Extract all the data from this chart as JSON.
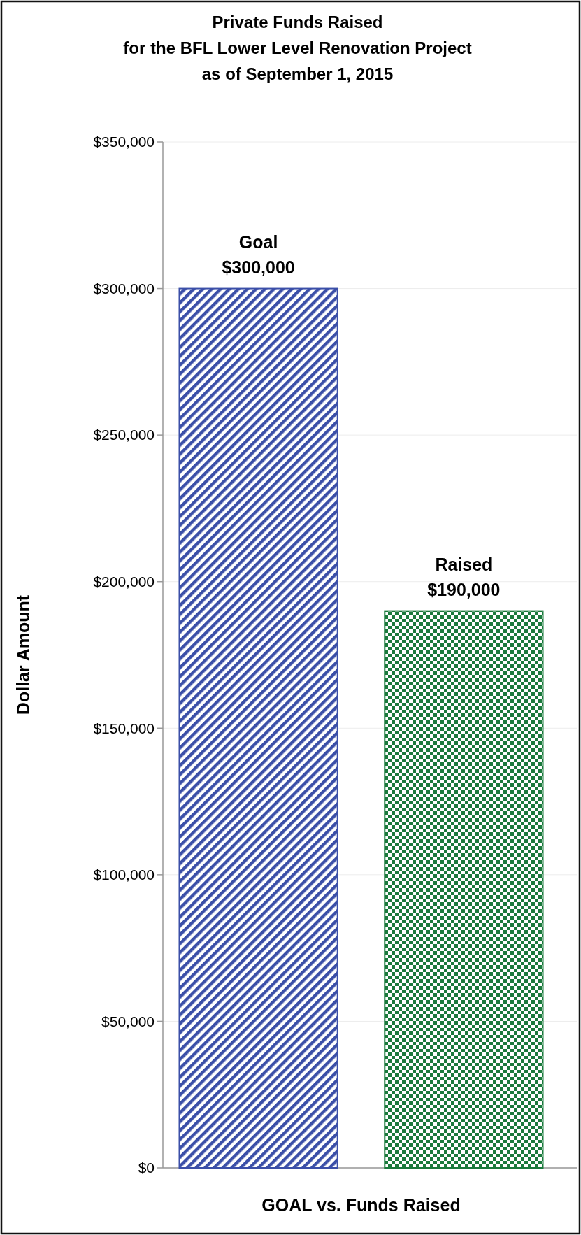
{
  "chart_data": {
    "type": "bar",
    "title": "Private Funds Raised\nfor the BFL Lower Level Renovation Project\nas of September 1, 2015",
    "xlabel": "GOAL vs. Funds Raised",
    "ylabel": "Dollar Amount",
    "categories": [
      "Goal",
      "Raised"
    ],
    "values": [
      300000,
      190000
    ],
    "colors": [
      "#3b4fa8",
      "#1b7a3c"
    ],
    "value_labels": [
      "$300,000",
      "$190,000"
    ],
    "ylim": [
      0,
      350000
    ],
    "yticks": [
      {
        "value": 0,
        "label": "$0"
      },
      {
        "value": 50000,
        "label": "$50,000"
      },
      {
        "value": 100000,
        "label": "$100,000"
      },
      {
        "value": 150000,
        "label": "$150,000"
      },
      {
        "value": 200000,
        "label": "$200,000"
      },
      {
        "value": 250000,
        "label": "$250,000"
      },
      {
        "value": 300000,
        "label": "$300,000"
      },
      {
        "value": 350000,
        "label": "$350,000"
      }
    ],
    "grid": "y"
  }
}
